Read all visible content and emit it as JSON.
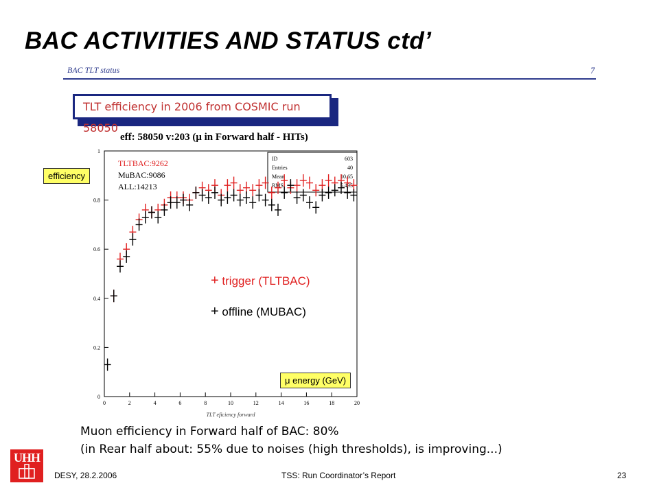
{
  "slide": {
    "title": "BAC ACTIVITIES AND STATUS ctd’",
    "sub_header": "BAC TLT status",
    "sub_page": "7",
    "tlt_box": "TLT efficiency in 2006 from COSMIC run 58050",
    "plot_heading": "eff:  58050  v:203  (μ in Forward half - HITs)",
    "ylabel_tag": "efficiency",
    "xlabel_tag": "μ  energy (GeV)",
    "legend_trigger": "trigger (TLTBAC)",
    "legend_offline": "offline (MUBAC)",
    "note_line1": "Muon efficiency in Forward half of BAC: 80%",
    "note_line2": "(in Rear half about:  55% due to noises (high thresholds), is improving...)",
    "logo_text": "UHH",
    "footer_left": "DESY, 28.2.2006",
    "footer_center": "TSS: Run Coordinator’s Report",
    "footer_page": "23"
  },
  "colors": {
    "trigger": "#e02020",
    "offline": "#000000",
    "accent": "#1a2780",
    "tag_bg": "#ffff66"
  },
  "chart_data": {
    "type": "scatter",
    "xlabel": "TLT eficiency forward",
    "ylabel": "",
    "xlim": [
      0,
      20
    ],
    "ylim": [
      0,
      1
    ],
    "x_ticks": [
      "0",
      "2",
      "4",
      "6",
      "8",
      "10",
      "12",
      "14",
      "16",
      "18",
      "20"
    ],
    "y_ticks": [
      "0",
      "0.2",
      "0.4",
      "0.6",
      "0.8",
      "1"
    ],
    "overlay_counts": [
      "TLTBAC:9262",
      "MuBAC:9086",
      "ALL:14213"
    ],
    "stats_box": [
      {
        "label": "ID",
        "value": "603"
      },
      {
        "label": "Entries",
        "value": "40"
      },
      {
        "label": "Mean",
        "value": "10.65"
      },
      {
        "label": "RMS",
        "value": "5.495"
      }
    ],
    "series": [
      {
        "name": "trigger (TLTBAC)",
        "marker": "+",
        "color": "#e02020",
        "x": [
          0.75,
          1.25,
          1.75,
          2.25,
          2.75,
          3.25,
          3.75,
          4.25,
          4.75,
          5.25,
          5.75,
          6.25,
          6.75,
          7.25,
          7.75,
          8.25,
          8.75,
          9.25,
          9.75,
          10.25,
          10.75,
          11.25,
          11.75,
          12.25,
          12.75,
          13.25,
          13.75,
          14.25,
          14.75,
          15.25,
          15.75,
          16.25,
          16.75,
          17.25,
          17.75,
          18.25,
          18.75,
          19.25,
          19.75
        ],
        "y": [
          0.41,
          0.56,
          0.6,
          0.67,
          0.72,
          0.76,
          0.75,
          0.76,
          0.78,
          0.81,
          0.81,
          0.81,
          0.8,
          0.83,
          0.85,
          0.84,
          0.86,
          0.82,
          0.86,
          0.87,
          0.84,
          0.85,
          0.84,
          0.86,
          0.87,
          0.83,
          0.85,
          0.88,
          0.85,
          0.86,
          0.88,
          0.87,
          0.84,
          0.86,
          0.88,
          0.87,
          0.88,
          0.87,
          0.86
        ]
      },
      {
        "name": "offline (MUBAC)",
        "marker": "+",
        "color": "#000000",
        "x": [
          0.25,
          0.75,
          1.25,
          1.75,
          2.25,
          2.75,
          3.25,
          3.75,
          4.25,
          4.75,
          5.25,
          5.75,
          6.25,
          6.75,
          7.25,
          7.75,
          8.25,
          8.75,
          9.25,
          9.75,
          10.25,
          10.75,
          11.25,
          11.75,
          12.25,
          12.75,
          13.25,
          13.75,
          14.25,
          14.75,
          15.25,
          15.75,
          16.25,
          16.75,
          17.25,
          17.75,
          18.25,
          18.75,
          19.25,
          19.75
        ],
        "y": [
          0.13,
          0.41,
          0.53,
          0.57,
          0.64,
          0.7,
          0.73,
          0.75,
          0.73,
          0.76,
          0.79,
          0.79,
          0.8,
          0.78,
          0.83,
          0.82,
          0.81,
          0.83,
          0.8,
          0.81,
          0.82,
          0.8,
          0.81,
          0.79,
          0.82,
          0.8,
          0.78,
          0.76,
          0.83,
          0.86,
          0.81,
          0.82,
          0.79,
          0.77,
          0.82,
          0.83,
          0.84,
          0.85,
          0.83,
          0.82
        ]
      }
    ]
  }
}
